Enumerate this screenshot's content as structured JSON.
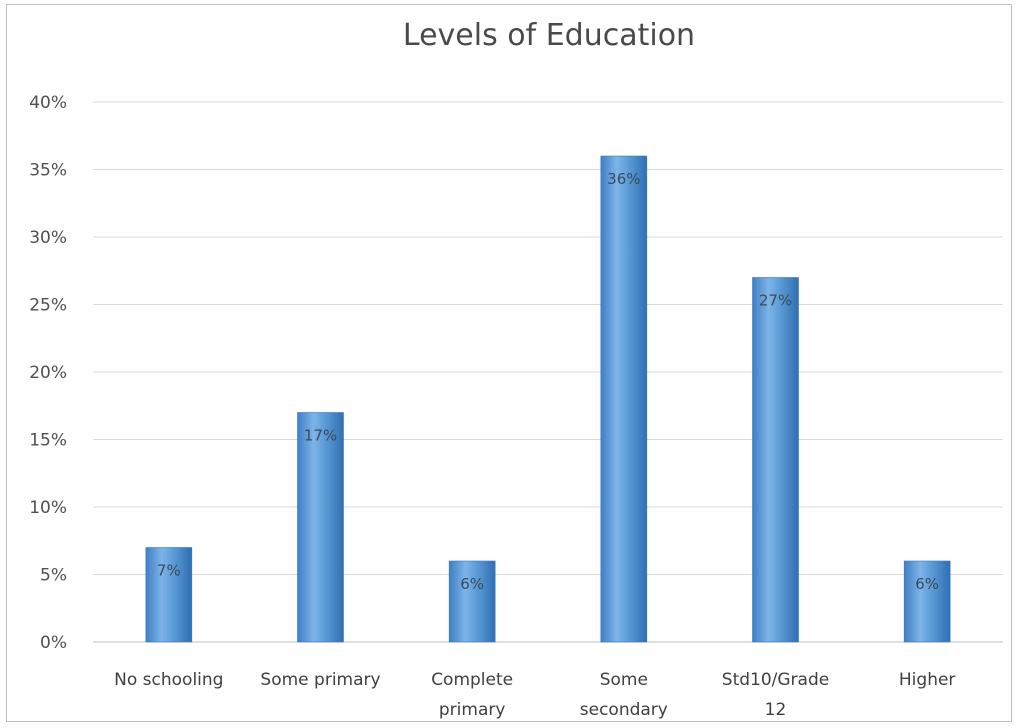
{
  "chart_data": {
    "type": "bar",
    "title": "Levels of Education",
    "xlabel": "",
    "ylabel": "",
    "categories": [
      [
        "No schooling"
      ],
      [
        "Some primary"
      ],
      [
        "Complete",
        "primary"
      ],
      [
        "Some",
        "secondary"
      ],
      [
        "Std10/Grade",
        "12"
      ],
      [
        "Higher"
      ]
    ],
    "values": [
      7,
      17,
      6,
      36,
      27,
      6
    ],
    "data_labels": [
      "7%",
      "17%",
      "6%",
      "36%",
      "27%",
      "6%"
    ],
    "ylim": [
      0,
      40
    ],
    "yticks": [
      0,
      5,
      10,
      15,
      20,
      25,
      30,
      35,
      40
    ],
    "ytick_labels": [
      "0%",
      "5%",
      "10%",
      "15%",
      "20%",
      "25%",
      "30%",
      "35%",
      "40%"
    ],
    "grid": true,
    "legend": "none",
    "bar_color": "#5b9bd5"
  }
}
